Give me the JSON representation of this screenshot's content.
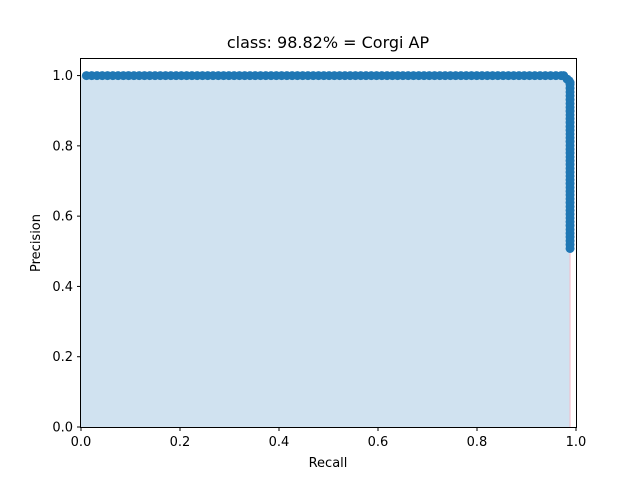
{
  "chart_data": {
    "type": "area",
    "title": "class: 98.82% = Corgi AP",
    "xlabel": "Recall",
    "ylabel": "Precision",
    "xlim": [
      0.0,
      1.0
    ],
    "ylim": [
      0.0,
      1.05
    ],
    "xticks": [
      "0.0",
      "0.2",
      "0.4",
      "0.6",
      "0.8",
      "1.0"
    ],
    "yticks": [
      "0.0",
      "0.2",
      "0.4",
      "0.6",
      "0.8",
      "1.0"
    ],
    "grid": false,
    "legend": "none",
    "series": [
      {
        "precision_one_recall_from": 0.011,
        "precision_one_recall_to": 0.97,
        "precision_one_points": 91,
        "knee": [
          [
            0.975,
            1.0
          ],
          [
            0.982,
            0.99
          ],
          [
            0.986,
            0.985
          ],
          [
            0.988,
            0.98
          ]
        ],
        "drop_recall": 0.988,
        "drop_precision_from": 0.975,
        "drop_precision_to": 0.508,
        "drop_points": 44,
        "area_recall_end": 0.988,
        "line_color": "#1f77b4",
        "area_color": "#d0e2f0",
        "edge_color": "#f5b8c8"
      }
    ]
  }
}
